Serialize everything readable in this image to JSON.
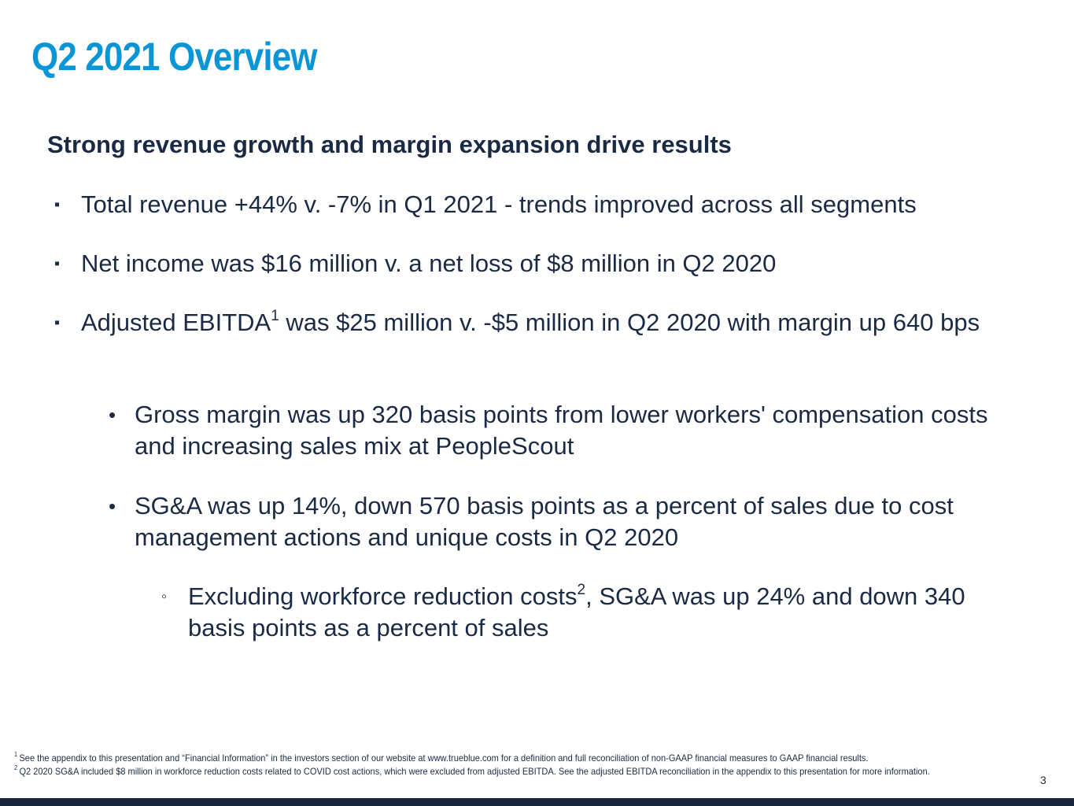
{
  "title": "Q2 2021 Overview",
  "subtitle": "Strong revenue growth and margin expansion drive results",
  "bullets": {
    "b1": "Total revenue +44% v. -7%  in Q1 2021 - trends improved across all segments",
    "b2": "Net income was $16 million v. a net loss of $8 million in Q2 2020",
    "b3_pre": "Adjusted EBITDA",
    "b3_sup": "1",
    "b3_post": " was $25 million v. -$5 million in Q2 2020 with margin up 640 bps",
    "s1": "Gross margin was up 320 basis points from lower workers' compensation costs and increasing sales mix at PeopleScout",
    "s2": "SG&A was up 14%, down 570 basis points as a percent of sales due to cost management actions and unique costs in Q2 2020",
    "t1_pre": "Excluding workforce reduction costs",
    "t1_sup": "2",
    "t1_post": ", SG&A was up 24% and down 340 basis points as a percent of sales"
  },
  "markers": {
    "square": "▪",
    "dot": "•",
    "ring": "◦"
  },
  "footnotes": [
    {
      "num": "1",
      "text": "See the appendix to this presentation and “Financial Information” in the investors section of our website at www.trueblue.com for a definition and full reconciliation of non-GAAP financial measures to GAAP financial results."
    },
    {
      "num": "2",
      "text": "Q2 2020 SG&A included $8 million in workforce reduction costs related to COVID cost actions, which were excluded from adjusted EBITDA. See the adjusted EBITDA reconciliation in the appendix to this presentation for more information."
    }
  ],
  "page_number": "3",
  "colors": {
    "title": "#0a96d6",
    "body_text": "#1b2a44",
    "bottom_bar": "#17253d"
  }
}
